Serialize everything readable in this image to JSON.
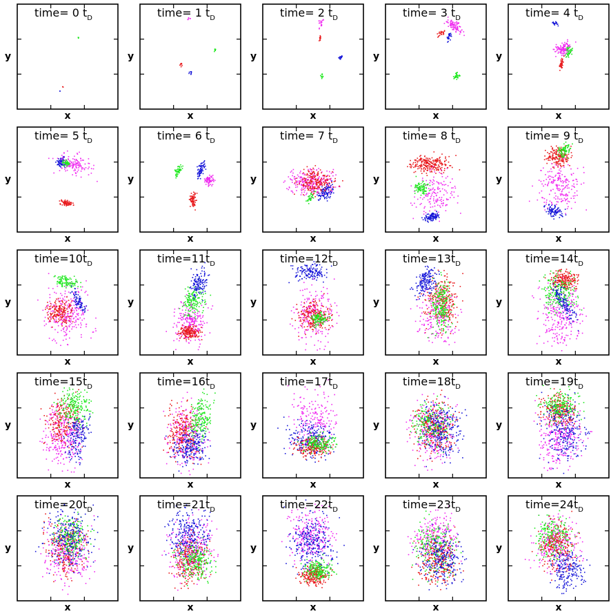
{
  "figure": {
    "x_label": "x",
    "y_label": "y",
    "title_prefix": "time=",
    "time_unit_base": "t",
    "time_unit_subscript": "D"
  },
  "chart_data": {
    "type": "scatter",
    "layout": {
      "rows": 5,
      "cols": 5
    },
    "xlabel": "x",
    "ylabel": "y",
    "series_colors": {
      "red": "#e8191c",
      "green": "#1ee81e",
      "blue": "#1515d8",
      "magenta": "#f02af0"
    },
    "panels": [
      {
        "time": 0,
        "title": "time=  0 t_D"
      },
      {
        "time": 1,
        "title": "time=  1 t_D"
      },
      {
        "time": 2,
        "title": "time=  2 t_D"
      },
      {
        "time": 3,
        "title": "time=  3 t_D"
      },
      {
        "time": 4,
        "title": "time=  4 t_D"
      },
      {
        "time": 5,
        "title": "time=  5 t_D"
      },
      {
        "time": 6,
        "title": "time=  6 t_D"
      },
      {
        "time": 7,
        "title": "time=  7 t_D"
      },
      {
        "time": 8,
        "title": "time=  8 t_D"
      },
      {
        "time": 9,
        "title": "time=  9 t_D"
      },
      {
        "time": 10,
        "title": "time=10t_D"
      },
      {
        "time": 11,
        "title": "time=11t_D"
      },
      {
        "time": 12,
        "title": "time=12t_D"
      },
      {
        "time": 13,
        "title": "time=13t_D"
      },
      {
        "time": 14,
        "title": "time=14t_D"
      },
      {
        "time": 15,
        "title": "time=15t_D"
      },
      {
        "time": 16,
        "title": "time=16t_D"
      },
      {
        "time": 17,
        "title": "time=17t_D"
      },
      {
        "time": 18,
        "title": "time=18t_D"
      },
      {
        "time": 19,
        "title": "time=19t_D"
      },
      {
        "time": 20,
        "title": "time=20t_D"
      },
      {
        "time": 21,
        "title": "time=21t_D"
      },
      {
        "time": 22,
        "title": "time=22t_D"
      },
      {
        "time": 23,
        "title": "time=23t_D"
      },
      {
        "time": 24,
        "title": "time=24t_D"
      }
    ]
  }
}
